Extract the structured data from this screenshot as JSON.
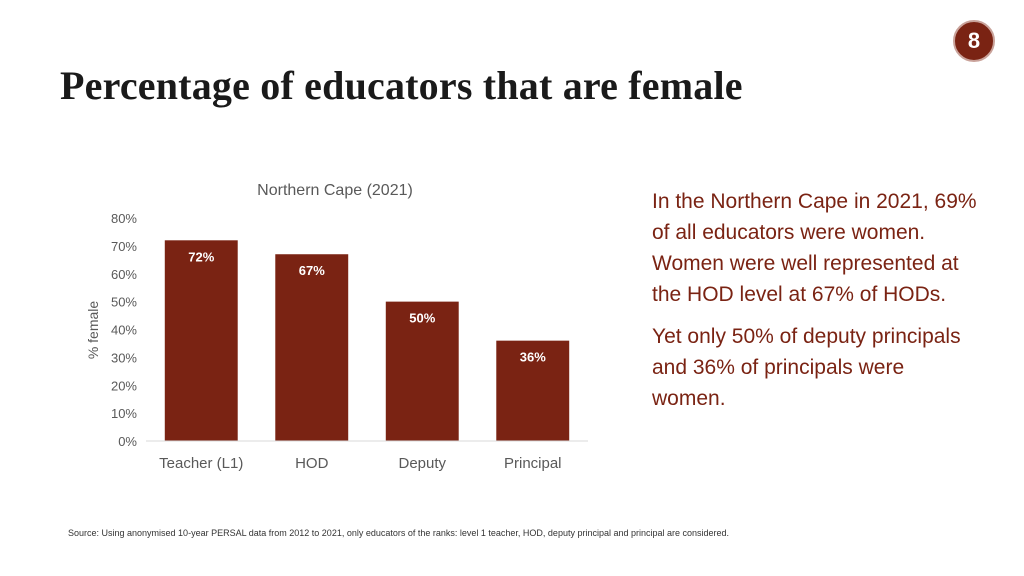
{
  "slide": {
    "number": "8"
  },
  "header": {
    "title": "Percentage of educators that are female"
  },
  "description": {
    "paragraphs": [
      "In the Northern Cape in 2021, 69% of all educators were women. Women were well represented at the HOD level at 67% of HODs.",
      "Yet only 50% of deputy principals and 36% of principals were women."
    ]
  },
  "footer": {
    "source": "Source: Using anonymised 10-year PERSAL data from 2012 to 2021, only educators of the ranks: level 1 teacher, HOD, deputy principal and principal are considered."
  },
  "chart_data": {
    "type": "bar",
    "title": "Northern Cape (2021)",
    "ylabel": "% female",
    "xlabel": "",
    "categories": [
      "Teacher (L1)",
      "HOD",
      "Deputy",
      "Principal"
    ],
    "values": [
      72,
      67,
      50,
      36
    ],
    "value_labels": [
      "72%",
      "67%",
      "50%",
      "36%"
    ],
    "ylim": [
      0,
      80
    ],
    "yticks": [
      0,
      10,
      20,
      30,
      40,
      50,
      60,
      70,
      80
    ],
    "ytick_labels": [
      "0%",
      "10%",
      "20%",
      "30%",
      "40%",
      "50%",
      "60%",
      "70%",
      "80%"
    ],
    "grid": false,
    "legend": "none",
    "bar_color": "#7a2313"
  }
}
